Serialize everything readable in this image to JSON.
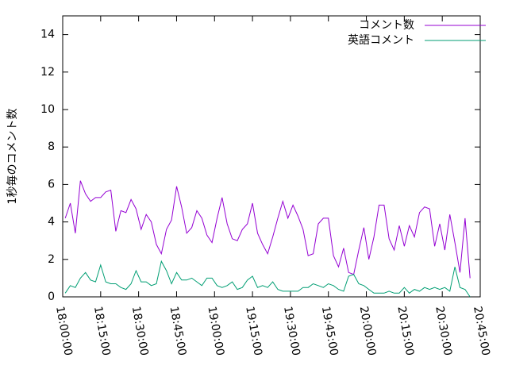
{
  "chart_data": {
    "type": "line",
    "ylabel": "1秒毎のコメント数",
    "x": [
      "18:01:00",
      "18:03:00",
      "18:05:00",
      "18:07:00",
      "18:09:00",
      "18:11:00",
      "18:13:00",
      "18:15:00",
      "18:17:00",
      "18:19:00",
      "18:21:00",
      "18:23:00",
      "18:25:00",
      "18:27:00",
      "18:29:00",
      "18:31:00",
      "18:33:00",
      "18:35:00",
      "18:37:00",
      "18:39:00",
      "18:41:00",
      "18:43:00",
      "18:45:00",
      "18:47:00",
      "18:49:00",
      "18:51:00",
      "18:53:00",
      "18:55:00",
      "18:57:00",
      "18:59:00",
      "19:01:00",
      "19:03:00",
      "19:05:00",
      "19:07:00",
      "19:09:00",
      "19:11:00",
      "19:13:00",
      "19:15:00",
      "19:17:00",
      "19:19:00",
      "19:21:00",
      "19:23:00",
      "19:25:00",
      "19:27:00",
      "19:29:00",
      "19:31:00",
      "19:33:00",
      "19:35:00",
      "19:37:00",
      "19:39:00",
      "19:41:00",
      "19:43:00",
      "19:45:00",
      "19:47:00",
      "19:49:00",
      "19:51:00",
      "19:53:00",
      "19:55:00",
      "19:57:00",
      "19:59:00",
      "20:01:00",
      "20:03:00",
      "20:05:00",
      "20:07:00",
      "20:09:00",
      "20:11:00",
      "20:13:00",
      "20:15:00",
      "20:17:00",
      "20:19:00",
      "20:21:00",
      "20:23:00",
      "20:25:00",
      "20:27:00",
      "20:29:00",
      "20:31:00",
      "20:33:00",
      "20:35:00",
      "20:37:00",
      "20:39:00",
      "20:41:00"
    ],
    "series": [
      {
        "name": "コメント数",
        "color": "#9400d3",
        "values": [
          4.2,
          5.0,
          3.4,
          6.2,
          5.5,
          5.1,
          5.3,
          5.3,
          5.6,
          5.7,
          3.5,
          4.6,
          4.5,
          5.2,
          4.7,
          3.6,
          4.4,
          4.0,
          2.8,
          2.3,
          3.6,
          4.1,
          5.9,
          4.8,
          3.4,
          3.7,
          4.6,
          4.2,
          3.3,
          2.9,
          4.2,
          5.3,
          3.9,
          3.1,
          3.0,
          3.6,
          3.9,
          5.0,
          3.4,
          2.8,
          2.3,
          3.2,
          4.2,
          5.1,
          4.2,
          4.9,
          4.3,
          3.6,
          2.2,
          2.3,
          3.9,
          4.2,
          4.2,
          2.2,
          1.6,
          2.6,
          1.3,
          1.2,
          2.5,
          3.7,
          2.0,
          3.2,
          4.9,
          4.9,
          3.1,
          2.5,
          3.8,
          2.7,
          3.8,
          3.2,
          4.5,
          4.8,
          4.7,
          2.7,
          3.9,
          2.5,
          4.4,
          2.9,
          1.3,
          4.2,
          1.0
        ]
      },
      {
        "name": "英語コメント",
        "color": "#009e73",
        "values": [
          0.2,
          0.6,
          0.5,
          1.0,
          1.3,
          0.9,
          0.8,
          1.7,
          0.8,
          0.7,
          0.7,
          0.5,
          0.4,
          0.7,
          1.4,
          0.8,
          0.8,
          0.6,
          0.7,
          1.9,
          1.4,
          0.7,
          1.3,
          0.9,
          0.9,
          1.0,
          0.8,
          0.6,
          1.0,
          1.0,
          0.6,
          0.5,
          0.6,
          0.8,
          0.4,
          0.5,
          0.9,
          1.1,
          0.5,
          0.6,
          0.5,
          0.8,
          0.4,
          0.3,
          0.3,
          0.3,
          0.3,
          0.5,
          0.5,
          0.7,
          0.6,
          0.5,
          0.7,
          0.6,
          0.4,
          0.3,
          1.1,
          1.2,
          0.7,
          0.6,
          0.4,
          0.2,
          0.2,
          0.2,
          0.3,
          0.2,
          0.2,
          0.5,
          0.2,
          0.4,
          0.3,
          0.5,
          0.4,
          0.5,
          0.4,
          0.5,
          0.3,
          1.6,
          0.5,
          0.4,
          0.0
        ]
      }
    ],
    "xlim": [
      "18:00:00",
      "20:45:00"
    ],
    "xticks": [
      "18:00:00",
      "18:15:00",
      "18:30:00",
      "18:45:00",
      "19:00:00",
      "19:15:00",
      "19:30:00",
      "19:45:00",
      "20:00:00",
      "20:15:00",
      "20:30:00",
      "20:45:00"
    ],
    "ylim": [
      0,
      15
    ],
    "yticks": [
      0,
      2,
      4,
      6,
      8,
      10,
      12,
      14
    ],
    "legend": "top-right"
  }
}
